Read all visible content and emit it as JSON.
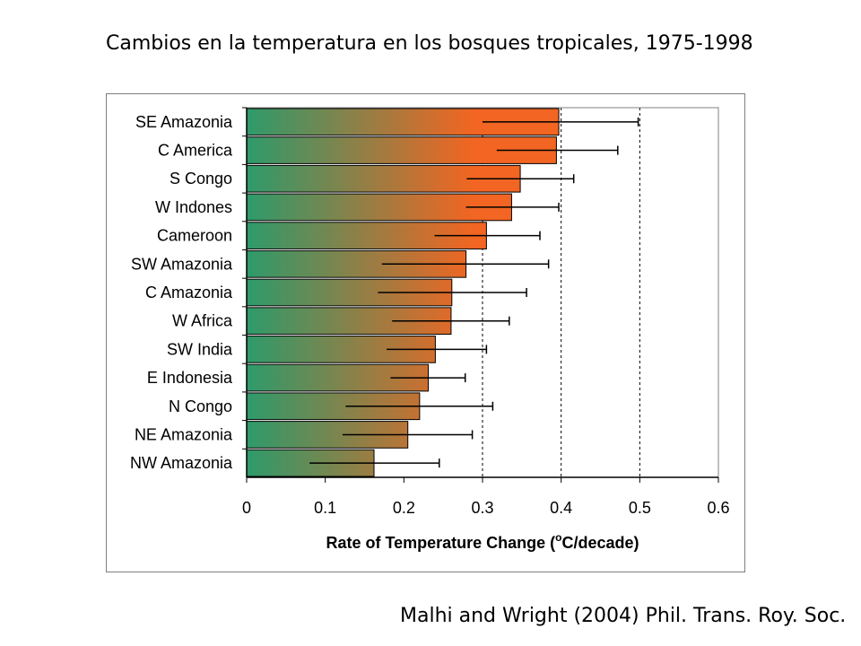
{
  "slide": {
    "title": "Cambios en la temperatura en los bosques tropicales, 1975-1998",
    "citation": "Malhi and Wright (2004) Phil. Trans. Roy. Soc."
  },
  "chart_data": {
    "type": "bar",
    "orientation": "horizontal",
    "title": "",
    "xlabel_prefix": "Rate of Temperature Change (",
    "xlabel_superscript": "o",
    "xlabel_suffix": "C/decade)",
    "ylabel": "",
    "xlim": [
      0,
      0.6
    ],
    "xticks": [
      "0",
      "0.1",
      "0.2",
      "0.3",
      "0.4",
      "0.5",
      "0.6"
    ],
    "grid": "dashed vertical lines at 0.3, 0.4, 0.5",
    "legend": "none",
    "bar_gradient": {
      "start": "#2e9a6b",
      "end": "#f26522"
    },
    "categories": [
      "SE Amazonia",
      "C America",
      "S Congo",
      "W Indones",
      "Cameroon",
      "SW Amazonia",
      "C Amazonia",
      "W Africa",
      "SW India",
      "E Indonesia",
      "N Congo",
      "NE Amazonia",
      "NW Amazonia"
    ],
    "values": [
      0.397,
      0.394,
      0.348,
      0.337,
      0.305,
      0.279,
      0.261,
      0.26,
      0.24,
      0.231,
      0.22,
      0.205,
      0.162
    ],
    "error_low": [
      0.3,
      0.318,
      0.28,
      0.279,
      0.239,
      0.172,
      0.167,
      0.185,
      0.178,
      0.183,
      0.126,
      0.122,
      0.08
    ],
    "error_high": [
      0.498,
      0.472,
      0.416,
      0.397,
      0.373,
      0.384,
      0.356,
      0.334,
      0.305,
      0.278,
      0.313,
      0.287,
      0.245
    ]
  }
}
